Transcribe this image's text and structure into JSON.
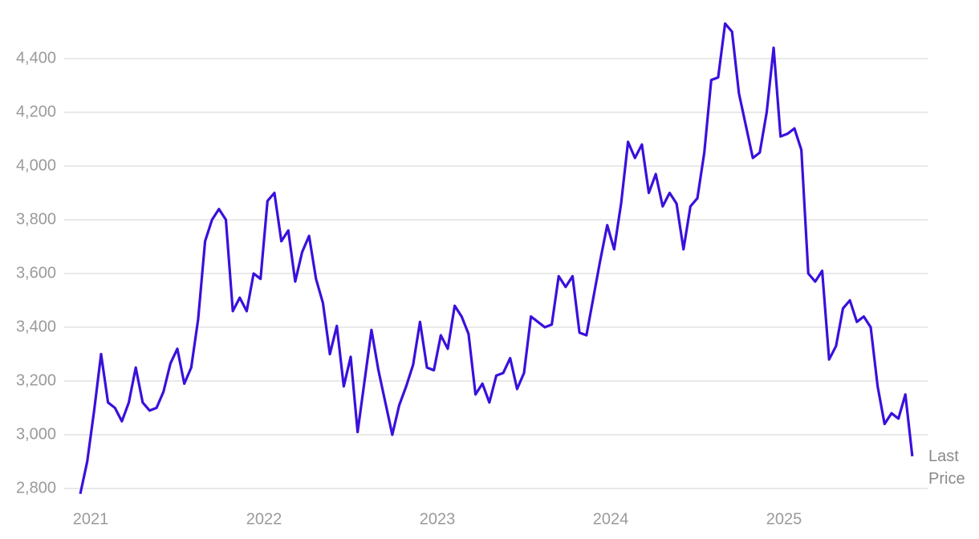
{
  "chart_data": {
    "type": "line",
    "annotation": "Last Price",
    "x": [
      2020.94,
      2020.98,
      2021.02,
      2021.06,
      2021.1,
      2021.14,
      2021.18,
      2021.22,
      2021.26,
      2021.3,
      2021.34,
      2021.38,
      2021.42,
      2021.46,
      2021.5,
      2021.54,
      2021.58,
      2021.62,
      2021.66,
      2021.7,
      2021.74,
      2021.78,
      2021.82,
      2021.86,
      2021.9,
      2021.94,
      2021.98,
      2022.02,
      2022.06,
      2022.1,
      2022.14,
      2022.18,
      2022.22,
      2022.26,
      2022.3,
      2022.34,
      2022.38,
      2022.42,
      2022.46,
      2022.5,
      2022.54,
      2022.58,
      2022.62,
      2022.66,
      2022.7,
      2022.74,
      2022.78,
      2022.82,
      2022.86,
      2022.9,
      2022.94,
      2022.98,
      2023.02,
      2023.06,
      2023.1,
      2023.14,
      2023.18,
      2023.22,
      2023.26,
      2023.3,
      2023.34,
      2023.38,
      2023.42,
      2023.46,
      2023.5,
      2023.54,
      2023.58,
      2023.62,
      2023.66,
      2023.7,
      2023.74,
      2023.78,
      2023.82,
      2023.86,
      2023.9,
      2023.94,
      2023.98,
      2024.02,
      2024.06,
      2024.1,
      2024.14,
      2024.18,
      2024.22,
      2024.26,
      2024.3,
      2024.34,
      2024.38,
      2024.42,
      2024.46,
      2024.5,
      2024.54,
      2024.58,
      2024.62,
      2024.66,
      2024.7,
      2024.74,
      2024.78,
      2024.82,
      2024.86,
      2024.9,
      2024.94,
      2024.98,
      2025.02,
      2025.06,
      2025.1,
      2025.14,
      2025.18,
      2025.22,
      2025.26,
      2025.3,
      2025.34,
      2025.38,
      2025.42,
      2025.46,
      2025.5,
      2025.54,
      2025.58,
      2025.62,
      2025.66,
      2025.7,
      2025.74
    ],
    "series": [
      {
        "color": "#3a10dc",
        "values": [
          2780,
          2900,
          3090,
          3300,
          3120,
          3100,
          3050,
          3120,
          3250,
          3120,
          3090,
          3100,
          3160,
          3265,
          3320,
          3190,
          3250,
          3430,
          3720,
          3800,
          3840,
          3800,
          3460,
          3510,
          3460,
          3600,
          3580,
          3870,
          3900,
          3720,
          3760,
          3570,
          3680,
          3740,
          3580,
          3490,
          3300,
          3405,
          3180,
          3290,
          3010,
          3200,
          3390,
          3240,
          3120,
          3000,
          3110,
          3180,
          3260,
          3420,
          3250,
          3240,
          3370,
          3320,
          3480,
          3440,
          3375,
          3150,
          3190,
          3120,
          3220,
          3230,
          3285,
          3170,
          3230,
          3440,
          3420,
          3400,
          3410,
          3590,
          3550,
          3590,
          3380,
          3370,
          3510,
          3650,
          3780,
          3690,
          3860,
          4090,
          4030,
          4080,
          3900,
          3970,
          3850,
          3900,
          3860,
          3690,
          3850,
          3880,
          4050,
          4320,
          4330,
          4530,
          4500,
          4270,
          4150,
          4030,
          4050,
          4200,
          4440,
          4110,
          4120,
          4140,
          4060,
          3600,
          3570,
          3610,
          3280,
          3330,
          3470,
          3500,
          3420,
          3440,
          3400,
          3180,
          3040,
          3080,
          3060,
          3150,
          2920
        ]
      }
    ],
    "xlim": [
      2020.9,
      2025.76
    ],
    "xticks": [
      2021,
      2022,
      2023,
      2024,
      2025
    ],
    "ylim": [
      2780,
      4560
    ],
    "yticks": [
      {
        "value": 2800,
        "label": "2,800"
      },
      {
        "value": 3000,
        "label": "3,000"
      },
      {
        "value": 3200,
        "label": "3,200"
      },
      {
        "value": 3400,
        "label": "3,400"
      },
      {
        "value": 3600,
        "label": "3,600"
      },
      {
        "value": 3800,
        "label": "3,800"
      },
      {
        "value": 4000,
        "label": "4,000"
      },
      {
        "value": 4200,
        "label": "4,200"
      },
      {
        "value": 4400,
        "label": "4,400"
      }
    ],
    "grid": true
  }
}
